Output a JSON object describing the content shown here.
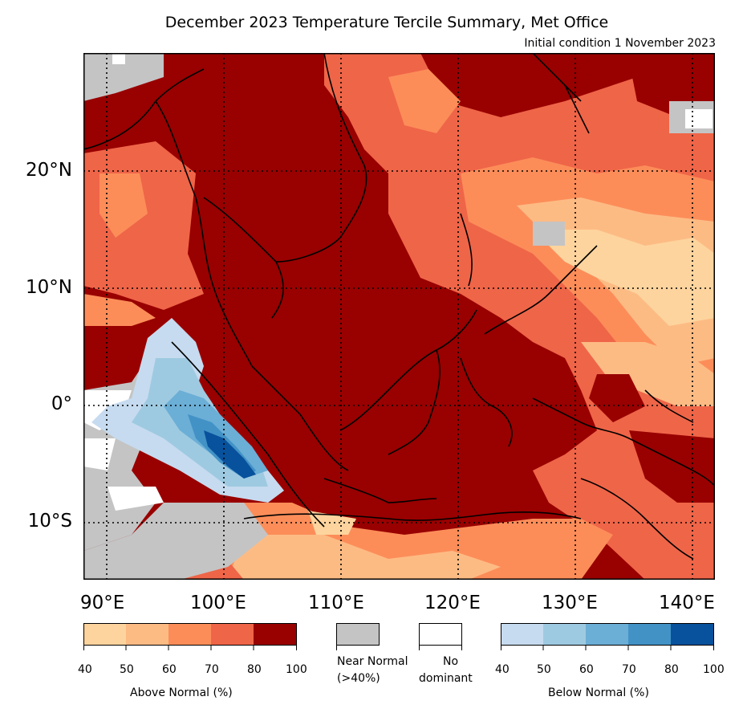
{
  "title": "December 2023 Temperature Tercile Summary, Met Office",
  "subtitle": "Initial condition 1 November 2023",
  "lat_labels": [
    "20°N",
    "10°N",
    "0°",
    "10°S"
  ],
  "lon_labels": [
    "90°E",
    "100°E",
    "110°E",
    "120°E",
    "130°E",
    "140°E"
  ],
  "legend": {
    "above": {
      "caption": "Above Normal (%)",
      "ticks": [
        "40",
        "50",
        "60",
        "70",
        "80",
        "100"
      ],
      "colors": [
        "#fdd49e",
        "#fdbb84",
        "#fc8d59",
        "#ef6548",
        "#990000"
      ]
    },
    "near_normal": {
      "caption_1": "Near Normal",
      "caption_2": "(>40%)",
      "color": "#c4c4c4"
    },
    "no_dominant": {
      "caption_1": "No",
      "caption_2": "dominant",
      "color": "#ffffff"
    },
    "below": {
      "caption": "Below Normal (%)",
      "ticks": [
        "40",
        "50",
        "60",
        "70",
        "80",
        "100"
      ],
      "colors": [
        "#c6dbef",
        "#9ecae1",
        "#6baed6",
        "#4292c6",
        "#08519c"
      ]
    }
  },
  "colors": {
    "above_max": "#990000",
    "above_high": "#ef6548",
    "above_mid": "#fc8d59",
    "above_low": "#fdbb84",
    "above_min": "#fdd49e",
    "near_normal": "#c4c4c4"
  }
}
